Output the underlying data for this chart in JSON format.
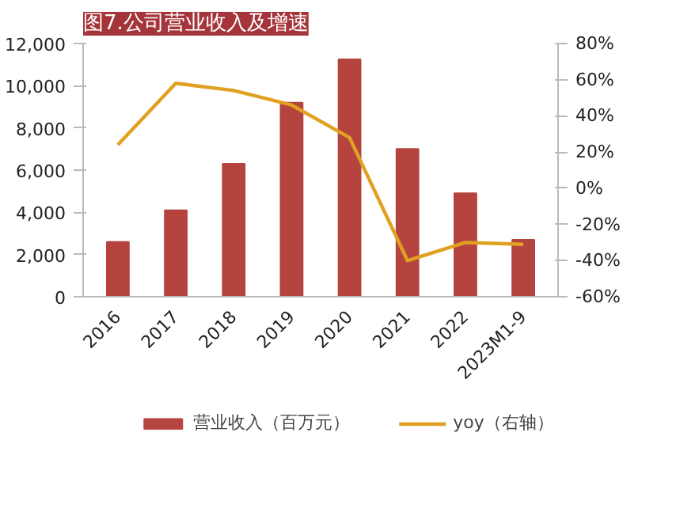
{
  "chart_data": {
    "type": "bar",
    "title": "图7.公司营业收入及增速",
    "categories": [
      "2016",
      "2017",
      "2018",
      "2019",
      "2020",
      "2021",
      "2022",
      "2023M1-9"
    ],
    "series": [
      {
        "name": "营业收入（百万元）",
        "color": "#b5443f",
        "values": [
          2600,
          4100,
          6300,
          9200,
          11250,
          7000,
          4900,
          2700
        ]
      },
      {
        "name": "yoy（右轴）",
        "type": "line",
        "axis": "y2",
        "color": "#e0a020",
        "values": [
          24,
          58,
          54,
          46,
          28,
          -40,
          -30,
          -31
        ]
      }
    ],
    "ylim": [
      0,
      12000
    ],
    "yticks": [
      0,
      {
        "value": 2000,
        "label": "2,000"
      },
      {
        "value": 4000,
        "label": "4,000"
      },
      {
        "value": 6000,
        "label": "6,000"
      },
      {
        "value": 8000,
        "label": "8,000"
      },
      {
        "value": 10000,
        "label": "10,000"
      },
      {
        "value": 12000,
        "label": "12,000"
      }
    ],
    "y2lim": [
      -60,
      80
    ],
    "y2ticks": [
      {
        "value": -60,
        "label": "-60%"
      },
      {
        "value": -40,
        "label": "-40%"
      },
      {
        "value": -20,
        "label": "-20%"
      },
      {
        "value": 0,
        "label": "0%"
      },
      {
        "value": 20,
        "label": "20%"
      },
      {
        "value": 40,
        "label": "40%"
      },
      {
        "value": 60,
        "label": "60%"
      },
      {
        "value": 80,
        "label": "80%"
      }
    ],
    "grid": false,
    "legend": "bottom",
    "marker": "none",
    "line_style": "solid"
  }
}
